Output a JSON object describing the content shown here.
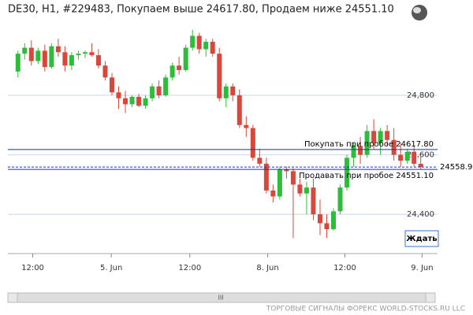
{
  "chart_data": {
    "type": "candlestick",
    "title": "DE30, H1, #229483, Покупаем выше 24617.80, Продаем ниже 24551.10",
    "x": [
      0,
      1,
      2,
      3,
      4,
      5,
      6,
      7,
      8,
      9,
      10,
      11,
      12,
      13,
      14,
      15,
      16,
      17,
      18,
      19,
      20,
      21,
      22,
      23,
      24,
      25,
      26,
      27,
      28,
      29,
      30,
      31,
      32,
      33,
      34,
      35,
      36,
      37,
      38,
      39,
      40,
      41,
      42,
      43,
      44,
      45,
      46,
      47,
      48,
      49,
      50,
      51,
      52,
      53,
      54,
      55,
      56,
      57,
      58,
      59,
      60
    ],
    "open": [
      24880,
      24940,
      24960,
      24915,
      24950,
      24895,
      24965,
      24945,
      24900,
      24935,
      24940,
      24945,
      24935,
      24900,
      24860,
      24810,
      24790,
      24770,
      24795,
      24765,
      24790,
      24830,
      24800,
      24860,
      24900,
      24885,
      24960,
      25000,
      24955,
      24980,
      24940,
      24790,
      24830,
      24800,
      24700,
      24690,
      24590,
      24570,
      24480,
      24460,
      24550,
      24545,
      24500,
      24470,
      24490,
      24400,
      24370,
      24350,
      24410,
      24490,
      24590,
      24630,
      24600,
      24680,
      24640,
      24680,
      24650,
      24600,
      24580,
      24610,
      24570
    ],
    "high": [
      24950,
      24975,
      24985,
      24960,
      24970,
      24975,
      24990,
      24965,
      24945,
      24950,
      24950,
      24975,
      24955,
      24915,
      24875,
      24830,
      24815,
      24800,
      24805,
      24800,
      24840,
      24850,
      24870,
      24910,
      24930,
      24970,
      25020,
      25010,
      24990,
      24990,
      24960,
      24840,
      24840,
      24820,
      24730,
      24700,
      24620,
      24590,
      24500,
      24560,
      24560,
      24555,
      24520,
      24510,
      24520,
      24450,
      24400,
      24420,
      24500,
      24600,
      24640,
      24660,
      24700,
      24720,
      24690,
      24700,
      24690,
      24640,
      24620,
      24630,
      24600
    ],
    "low": [
      24860,
      24920,
      24900,
      24905,
      24880,
      24890,
      24930,
      24880,
      24885,
      24920,
      24925,
      24930,
      24890,
      24850,
      24800,
      24755,
      24740,
      24760,
      24760,
      24755,
      24780,
      24790,
      24795,
      24850,
      24870,
      24880,
      24950,
      24940,
      24930,
      24930,
      24780,
      24760,
      24780,
      24690,
      24660,
      24580,
      24560,
      24470,
      24440,
      24450,
      24520,
      24320,
      24460,
      24400,
      24380,
      24330,
      24320,
      24345,
      24400,
      24480,
      24560,
      24570,
      24590,
      24620,
      24600,
      24630,
      24580,
      24560,
      24570,
      24560,
      24550
    ],
    "close": [
      24940,
      24960,
      24915,
      24950,
      24895,
      24965,
      24945,
      24900,
      24935,
      24940,
      24945,
      24935,
      24900,
      24860,
      24810,
      24790,
      24770,
      24795,
      24765,
      24790,
      24830,
      24800,
      24860,
      24900,
      24885,
      24960,
      25000,
      24955,
      24980,
      24940,
      24790,
      24830,
      24800,
      24700,
      24690,
      24590,
      24570,
      24480,
      24460,
      24550,
      24545,
      24500,
      24470,
      24490,
      24400,
      24370,
      24350,
      24410,
      24490,
      24590,
      24630,
      24600,
      24680,
      24640,
      24680,
      24650,
      24600,
      24580,
      24610,
      24570,
      24559
    ],
    "up_color": "#2ebd3a",
    "down_color": "#d9473b",
    "xlim": [
      -1.5,
      62.5
    ],
    "xticks": [
      {
        "value": 2.2,
        "label": "12:00"
      },
      {
        "value": 13.9,
        "label": "5. Jun"
      },
      {
        "value": 25.6,
        "label": "12:00"
      },
      {
        "value": 37.2,
        "label": "8. Jun"
      },
      {
        "value": 48.7,
        "label": "12:00"
      },
      {
        "value": 60.2,
        "label": "9. Jun"
      }
    ],
    "ylim": [
      24268,
      25094
    ],
    "yticks": [
      {
        "value": 24400,
        "label": "24,400"
      },
      {
        "value": 24600,
        "label": "24,600"
      },
      {
        "value": 24800,
        "label": "24,800"
      }
    ],
    "grid": true,
    "buy_level": {
      "value": 24617.8,
      "label": "Покупать при пробое 24617.80"
    },
    "sell_level": {
      "value": 24551.1,
      "label": "Продавать при пробое 24551.10"
    },
    "current_price": 24558.9,
    "level_color": "#1a2fbf"
  },
  "signal_button": "Ждать",
  "scrollbar_grip": "III",
  "footer": "ТОРГОВЫЕ СИГНАЛЫ ФОРЕКС WORLD-STOCKS.RU LLC"
}
